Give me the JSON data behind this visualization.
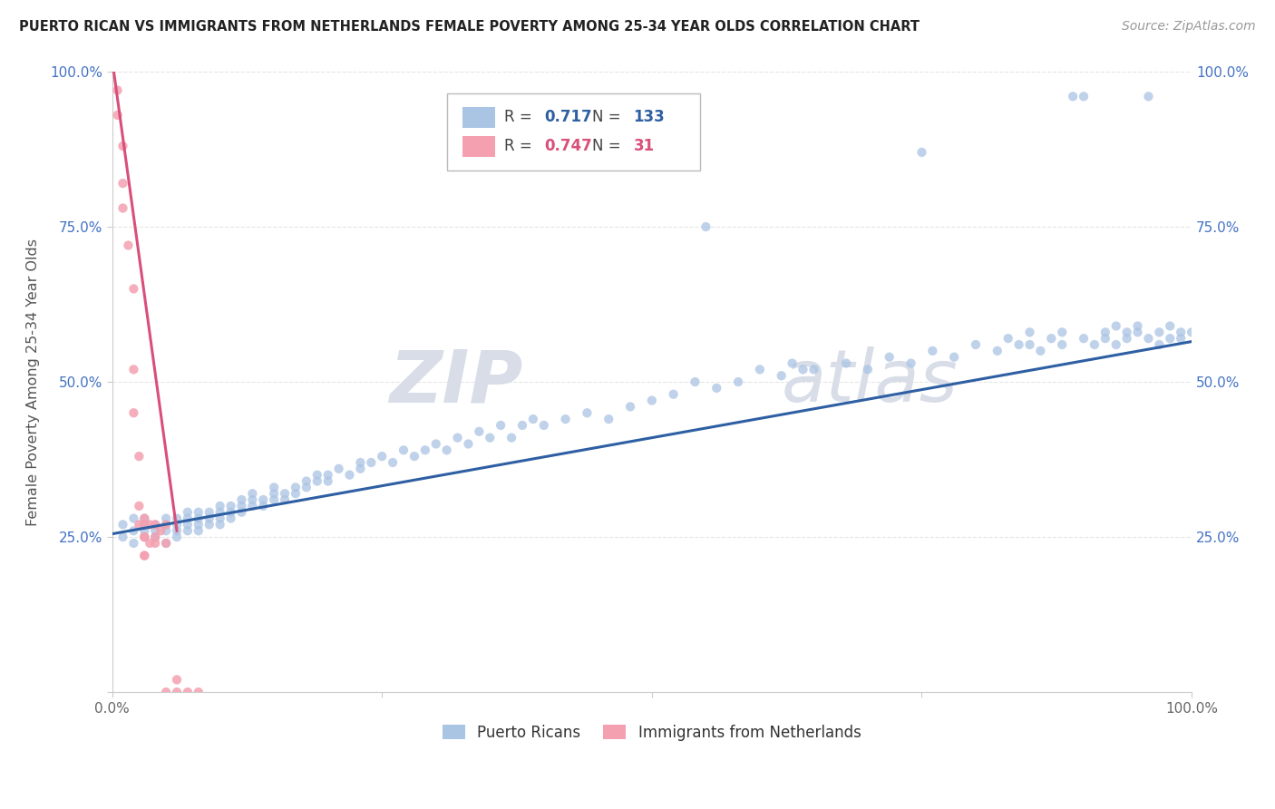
{
  "title": "PUERTO RICAN VS IMMIGRANTS FROM NETHERLANDS FEMALE POVERTY AMONG 25-34 YEAR OLDS CORRELATION CHART",
  "source": "Source: ZipAtlas.com",
  "ylabel": "Female Poverty Among 25-34 Year Olds",
  "xlim": [
    0,
    1
  ],
  "ylim": [
    0,
    1
  ],
  "blue_R": 0.717,
  "blue_N": 133,
  "pink_R": 0.747,
  "pink_N": 31,
  "blue_color": "#aac4e4",
  "pink_color": "#f4a0b0",
  "blue_line_color": "#2e5fa3",
  "pink_line_color": "#d94f7a",
  "blue_scatter": [
    [
      0.01,
      0.27
    ],
    [
      0.01,
      0.25
    ],
    [
      0.02,
      0.26
    ],
    [
      0.02,
      0.28
    ],
    [
      0.02,
      0.24
    ],
    [
      0.03,
      0.27
    ],
    [
      0.03,
      0.25
    ],
    [
      0.03,
      0.26
    ],
    [
      0.03,
      0.28
    ],
    [
      0.04,
      0.26
    ],
    [
      0.04,
      0.27
    ],
    [
      0.04,
      0.25
    ],
    [
      0.05,
      0.27
    ],
    [
      0.05,
      0.26
    ],
    [
      0.05,
      0.28
    ],
    [
      0.05,
      0.24
    ],
    [
      0.06,
      0.27
    ],
    [
      0.06,
      0.26
    ],
    [
      0.06,
      0.28
    ],
    [
      0.06,
      0.25
    ],
    [
      0.07,
      0.28
    ],
    [
      0.07,
      0.27
    ],
    [
      0.07,
      0.26
    ],
    [
      0.07,
      0.29
    ],
    [
      0.08,
      0.28
    ],
    [
      0.08,
      0.27
    ],
    [
      0.08,
      0.26
    ],
    [
      0.08,
      0.29
    ],
    [
      0.09,
      0.28
    ],
    [
      0.09,
      0.29
    ],
    [
      0.09,
      0.27
    ],
    [
      0.1,
      0.29
    ],
    [
      0.1,
      0.28
    ],
    [
      0.1,
      0.3
    ],
    [
      0.1,
      0.27
    ],
    [
      0.11,
      0.3
    ],
    [
      0.11,
      0.29
    ],
    [
      0.11,
      0.28
    ],
    [
      0.12,
      0.3
    ],
    [
      0.12,
      0.29
    ],
    [
      0.12,
      0.31
    ],
    [
      0.13,
      0.31
    ],
    [
      0.13,
      0.3
    ],
    [
      0.13,
      0.32
    ],
    [
      0.14,
      0.31
    ],
    [
      0.14,
      0.3
    ],
    [
      0.15,
      0.32
    ],
    [
      0.15,
      0.31
    ],
    [
      0.15,
      0.33
    ],
    [
      0.16,
      0.32
    ],
    [
      0.16,
      0.31
    ],
    [
      0.17,
      0.33
    ],
    [
      0.17,
      0.32
    ],
    [
      0.18,
      0.34
    ],
    [
      0.18,
      0.33
    ],
    [
      0.19,
      0.34
    ],
    [
      0.19,
      0.35
    ],
    [
      0.2,
      0.35
    ],
    [
      0.2,
      0.34
    ],
    [
      0.21,
      0.36
    ],
    [
      0.22,
      0.35
    ],
    [
      0.23,
      0.36
    ],
    [
      0.23,
      0.37
    ],
    [
      0.24,
      0.37
    ],
    [
      0.25,
      0.38
    ],
    [
      0.26,
      0.37
    ],
    [
      0.27,
      0.39
    ],
    [
      0.28,
      0.38
    ],
    [
      0.29,
      0.39
    ],
    [
      0.3,
      0.4
    ],
    [
      0.31,
      0.39
    ],
    [
      0.32,
      0.41
    ],
    [
      0.33,
      0.4
    ],
    [
      0.34,
      0.42
    ],
    [
      0.35,
      0.41
    ],
    [
      0.36,
      0.43
    ],
    [
      0.37,
      0.41
    ],
    [
      0.38,
      0.43
    ],
    [
      0.39,
      0.44
    ],
    [
      0.4,
      0.43
    ],
    [
      0.42,
      0.44
    ],
    [
      0.44,
      0.45
    ],
    [
      0.46,
      0.44
    ],
    [
      0.48,
      0.46
    ],
    [
      0.5,
      0.47
    ],
    [
      0.52,
      0.48
    ],
    [
      0.54,
      0.5
    ],
    [
      0.55,
      0.75
    ],
    [
      0.56,
      0.49
    ],
    [
      0.58,
      0.5
    ],
    [
      0.6,
      0.52
    ],
    [
      0.62,
      0.51
    ],
    [
      0.63,
      0.53
    ],
    [
      0.64,
      0.52
    ],
    [
      0.65,
      0.52
    ],
    [
      0.68,
      0.53
    ],
    [
      0.7,
      0.52
    ],
    [
      0.72,
      0.54
    ],
    [
      0.74,
      0.53
    ],
    [
      0.75,
      0.87
    ],
    [
      0.76,
      0.55
    ],
    [
      0.78,
      0.54
    ],
    [
      0.8,
      0.56
    ],
    [
      0.82,
      0.55
    ],
    [
      0.83,
      0.57
    ],
    [
      0.84,
      0.56
    ],
    [
      0.85,
      0.58
    ],
    [
      0.85,
      0.56
    ],
    [
      0.86,
      0.55
    ],
    [
      0.87,
      0.57
    ],
    [
      0.88,
      0.56
    ],
    [
      0.88,
      0.58
    ],
    [
      0.89,
      0.96
    ],
    [
      0.9,
      0.96
    ],
    [
      0.9,
      0.57
    ],
    [
      0.91,
      0.56
    ],
    [
      0.92,
      0.58
    ],
    [
      0.92,
      0.57
    ],
    [
      0.93,
      0.59
    ],
    [
      0.93,
      0.56
    ],
    [
      0.94,
      0.58
    ],
    [
      0.94,
      0.57
    ],
    [
      0.95,
      0.59
    ],
    [
      0.95,
      0.58
    ],
    [
      0.96,
      0.96
    ],
    [
      0.96,
      0.57
    ],
    [
      0.97,
      0.58
    ],
    [
      0.97,
      0.56
    ],
    [
      0.98,
      0.57
    ],
    [
      0.98,
      0.59
    ],
    [
      0.99,
      0.58
    ],
    [
      0.99,
      0.57
    ],
    [
      1.0,
      0.58
    ]
  ],
  "pink_scatter": [
    [
      0.005,
      0.97
    ],
    [
      0.005,
      0.93
    ],
    [
      0.01,
      0.88
    ],
    [
      0.01,
      0.82
    ],
    [
      0.01,
      0.78
    ],
    [
      0.015,
      0.72
    ],
    [
      0.02,
      0.65
    ],
    [
      0.02,
      0.52
    ],
    [
      0.02,
      0.45
    ],
    [
      0.025,
      0.38
    ],
    [
      0.025,
      0.3
    ],
    [
      0.025,
      0.27
    ],
    [
      0.03,
      0.28
    ],
    [
      0.03,
      0.25
    ],
    [
      0.03,
      0.22
    ],
    [
      0.03,
      0.27
    ],
    [
      0.03,
      0.25
    ],
    [
      0.03,
      0.22
    ],
    [
      0.035,
      0.24
    ],
    [
      0.035,
      0.27
    ],
    [
      0.04,
      0.25
    ],
    [
      0.04,
      0.27
    ],
    [
      0.04,
      0.24
    ],
    [
      0.045,
      0.26
    ],
    [
      0.05,
      0.27
    ],
    [
      0.05,
      0.24
    ],
    [
      0.05,
      0.0
    ],
    [
      0.06,
      0.02
    ],
    [
      0.06,
      0.0
    ],
    [
      0.07,
      0.0
    ],
    [
      0.08,
      0.0
    ]
  ],
  "blue_line": [
    [
      0.0,
      0.255
    ],
    [
      1.0,
      0.565
    ]
  ],
  "pink_line": [
    [
      0.0,
      1.02
    ],
    [
      0.06,
      0.26
    ]
  ],
  "watermark_zip": "ZIP",
  "watermark_atlas": "atlas",
  "background_color": "#ffffff",
  "grid_color": "#e5e5e5"
}
